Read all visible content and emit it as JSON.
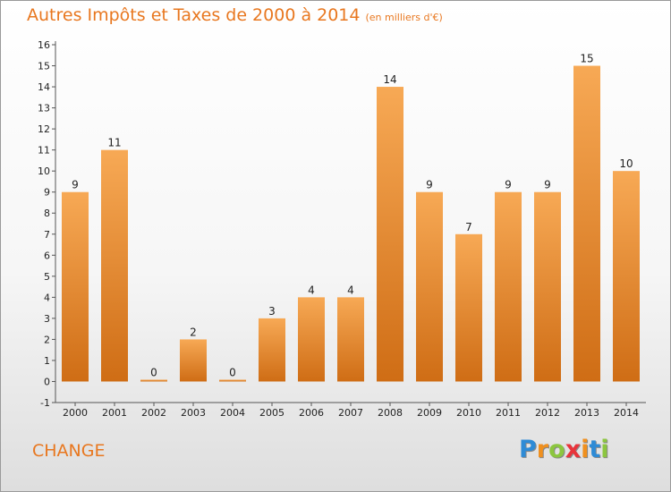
{
  "chart_data": {
    "type": "bar",
    "title": "Autres Impôts et Taxes de 2000 à 2014",
    "unit_label": "(en milliers d'€)",
    "categories": [
      "2000",
      "2001",
      "2002",
      "2003",
      "2004",
      "2005",
      "2006",
      "2007",
      "2008",
      "2009",
      "2010",
      "2011",
      "2012",
      "2013",
      "2014"
    ],
    "values": [
      9,
      11,
      0,
      2,
      0,
      3,
      4,
      4,
      14,
      9,
      7,
      9,
      9,
      15,
      10
    ],
    "value_labels": [
      "9",
      "11",
      "0",
      "2",
      "0",
      "3",
      "4",
      "4",
      "14",
      "9",
      "7",
      "9",
      "9",
      "15",
      "10"
    ],
    "yticks": [
      "16",
      "15",
      "14",
      "13",
      "12",
      "11",
      "10",
      "9",
      "8",
      "7",
      "6",
      "5",
      "4",
      "3",
      "2",
      "1",
      "0",
      "-1"
    ],
    "ylim": [
      -1,
      16
    ],
    "bar_color": "#f0852a",
    "grid": false
  },
  "footer": {
    "location": "CHANGE",
    "logo_letters": [
      "P",
      "r",
      "o",
      "x",
      "i",
      "t",
      "i"
    ],
    "logo_colors": [
      "#2e8bd6",
      "#f0901e",
      "#8cc63f",
      "#e8343b",
      "#f0901e",
      "#2e8bd6",
      "#8cc63f"
    ]
  }
}
